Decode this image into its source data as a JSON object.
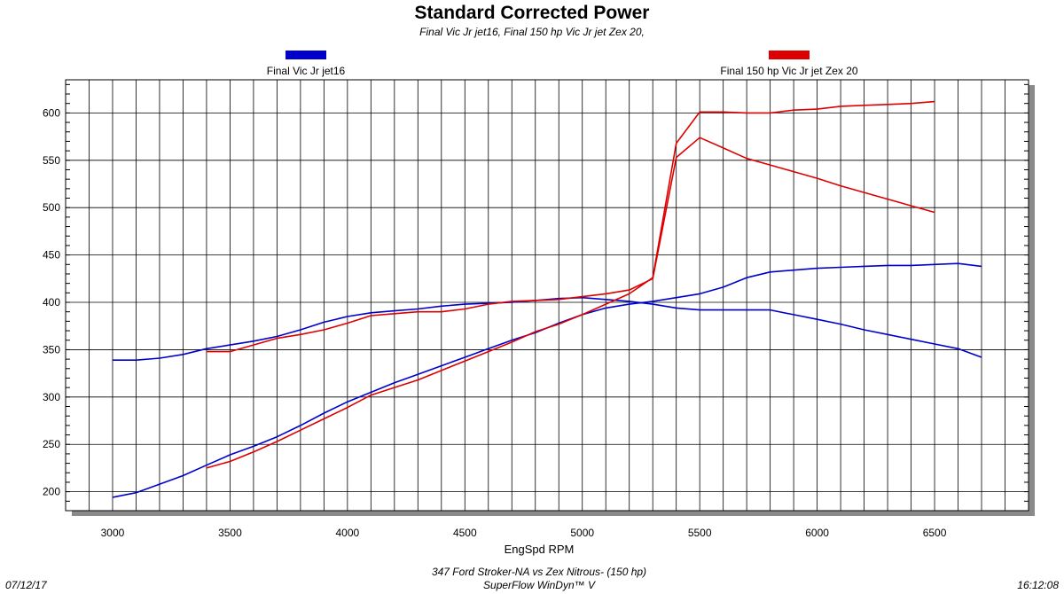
{
  "chart_data": {
    "type": "line",
    "title": "Standard Corrected Power",
    "subtitle": "Final Vic Jr jet16, Final 150 hp Vic Jr jet Zex 20,",
    "xlabel": "EngSpd RPM",
    "ylabel": "",
    "xlim": [
      2800,
      6900
    ],
    "ylim": [
      180,
      635
    ],
    "x_ticks": [
      3000,
      3500,
      4000,
      4500,
      5000,
      5500,
      6000,
      6500
    ],
    "y_ticks": [
      200,
      250,
      300,
      350,
      400,
      450,
      500,
      550,
      600
    ],
    "grid": true,
    "legend": [
      {
        "name": "Final Vic Jr jet16",
        "color": "#0000cc"
      },
      {
        "name": "Final 150 hp Vic Jr jet Zex 20",
        "color": "#dd0000"
      }
    ],
    "series": [
      {
        "name": "Final Vic Jr jet16",
        "color": "#0000cc",
        "measure": "torque",
        "x": [
          3000,
          3100,
          3200,
          3300,
          3400,
          3500,
          3600,
          3700,
          3800,
          3900,
          4000,
          4100,
          4200,
          4300,
          4400,
          4500,
          4600,
          4700,
          4800,
          4900,
          5000,
          5100,
          5200,
          5300,
          5400,
          5500,
          5600,
          5700,
          5800,
          5900,
          6000,
          6100,
          6200,
          6300,
          6400,
          6500,
          6600,
          6700
        ],
        "values": [
          339,
          339,
          341,
          345,
          351,
          355,
          359,
          364,
          371,
          379,
          385,
          389,
          391,
          393,
          396,
          398,
          399,
          400,
          402,
          404,
          405,
          403,
          401,
          398,
          394,
          392,
          392,
          392,
          392,
          387,
          382,
          377,
          371,
          366,
          361,
          356,
          351,
          342
        ]
      },
      {
        "name": "Final Vic Jr jet16",
        "color": "#0000cc",
        "measure": "power",
        "x": [
          3000,
          3100,
          3200,
          3300,
          3400,
          3500,
          3600,
          3700,
          3800,
          3900,
          4000,
          4100,
          4200,
          4300,
          4400,
          4500,
          4600,
          4700,
          4800,
          4900,
          5000,
          5100,
          5200,
          5300,
          5400,
          5500,
          5600,
          5700,
          5800,
          5900,
          6000,
          6100,
          6200,
          6300,
          6400,
          6500,
          6600,
          6700
        ],
        "values": [
          194,
          199,
          208,
          217,
          228,
          239,
          248,
          258,
          270,
          283,
          295,
          305,
          315,
          324,
          333,
          342,
          351,
          360,
          368,
          378,
          387,
          394,
          398,
          401,
          405,
          409,
          416,
          426,
          432,
          434,
          436,
          437,
          438,
          439,
          439,
          440,
          441,
          438
        ]
      },
      {
        "name": "Final 150 hp Vic Jr jet Zex 20",
        "color": "#dd0000",
        "measure": "torque",
        "x": [
          3400,
          3500,
          3600,
          3700,
          3800,
          3900,
          4000,
          4100,
          4200,
          4300,
          4400,
          4500,
          4600,
          4700,
          4800,
          4900,
          5000,
          5100,
          5200,
          5300,
          5400,
          5500,
          5600,
          5700,
          5800,
          5900,
          6000,
          6100,
          6200,
          6300,
          6400,
          6500
        ],
        "values": [
          348,
          348,
          355,
          362,
          366,
          371,
          378,
          386,
          388,
          390,
          390,
          393,
          398,
          401,
          402,
          403,
          406,
          409,
          413,
          425,
          553,
          574,
          563,
          552,
          545,
          538,
          531,
          523,
          516,
          509,
          502,
          495
        ]
      },
      {
        "name": "Final 150 hp Vic Jr jet Zex 20",
        "color": "#dd0000",
        "measure": "power",
        "x": [
          3400,
          3500,
          3600,
          3700,
          3800,
          3900,
          4000,
          4100,
          4200,
          4300,
          4400,
          4500,
          4600,
          4700,
          4800,
          4900,
          5000,
          5100,
          5200,
          5300,
          5400,
          5500,
          5600,
          5700,
          5800,
          5900,
          6000,
          6100,
          6200,
          6300,
          6400,
          6500
        ],
        "values": [
          225,
          232,
          242,
          253,
          265,
          277,
          289,
          302,
          310,
          318,
          328,
          338,
          348,
          358,
          369,
          377,
          387,
          398,
          409,
          426,
          568,
          601,
          601,
          600,
          600,
          603,
          604,
          607,
          608,
          609,
          610,
          612
        ]
      }
    ]
  },
  "footer": {
    "test_name": "347 Ford Stroker-NA vs Zex Nitrous- (150 hp)",
    "software": "SuperFlow WinDyn™ V",
    "date": "07/12/17",
    "time": "16:12:08"
  }
}
